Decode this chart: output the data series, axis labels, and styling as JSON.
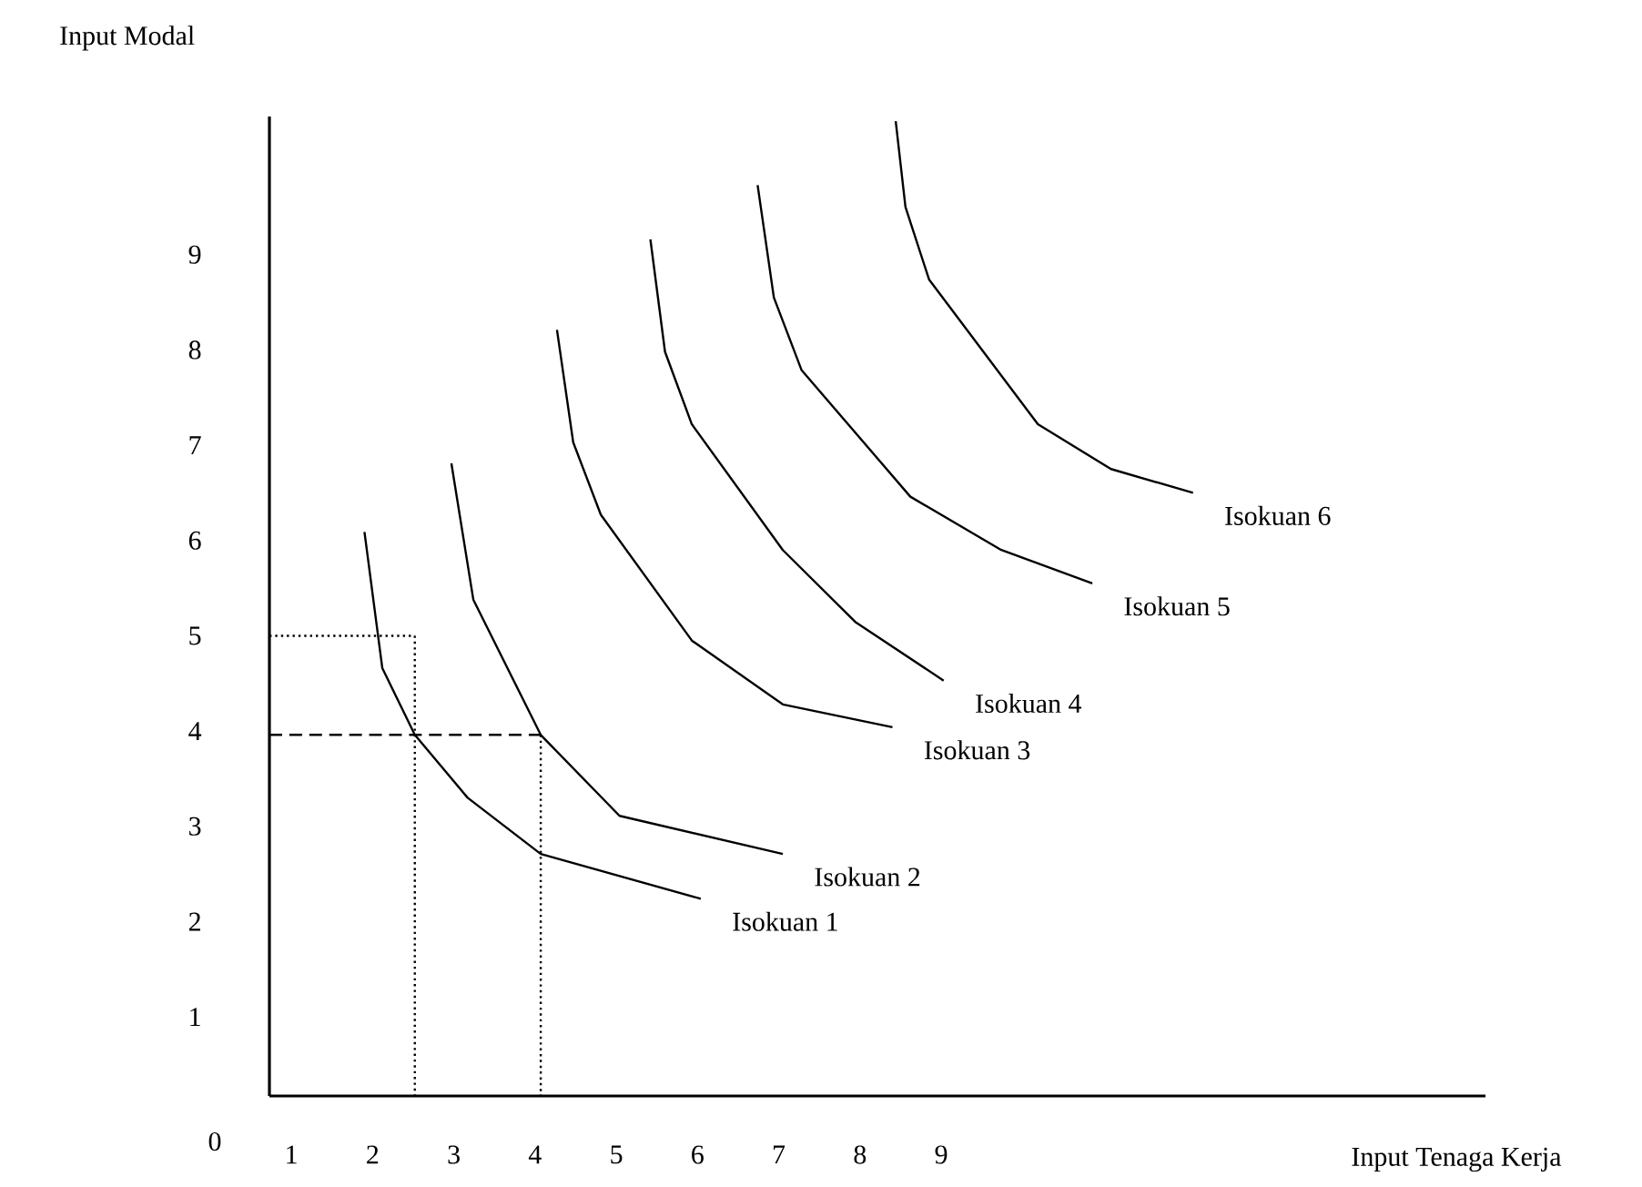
{
  "chart_data": {
    "type": "line",
    "xlabel": "Input Tenaga Kerja",
    "ylabel": "Input Modal",
    "xlim": [
      0.73,
      15.7
    ],
    "ylim": [
      0.17,
      10.45
    ],
    "xticks": [
      1,
      2,
      3,
      4,
      5,
      6,
      7,
      8,
      9
    ],
    "yticks": [
      1,
      2,
      3,
      4,
      5,
      6,
      7,
      8,
      9
    ],
    "annotations": [
      "0"
    ],
    "series": [
      {
        "name": "Isokuan 1",
        "color": "#000000",
        "x": [
          1.9,
          2.12,
          2.52,
          3.17,
          4.07,
          6.04
        ],
        "values": [
          6.09,
          4.66,
          3.96,
          3.3,
          2.71,
          2.24
        ]
      },
      {
        "name": "Isokuan 2",
        "color": "#000000",
        "x": [
          2.97,
          3.24,
          4.07,
          5.04,
          7.05
        ],
        "values": [
          6.81,
          5.38,
          3.96,
          3.11,
          2.71
        ]
      },
      {
        "name": "Isokuan 3",
        "color": "#000000",
        "x": [
          4.27,
          4.47,
          4.81,
          5.93,
          7.05,
          8.4
        ],
        "values": [
          8.21,
          7.03,
          6.27,
          4.95,
          4.28,
          4.04
        ]
      },
      {
        "name": "Isokuan 4",
        "color": "#000000",
        "x": [
          5.42,
          5.6,
          5.93,
          7.05,
          7.95,
          9.03
        ],
        "values": [
          9.16,
          7.98,
          7.22,
          5.9,
          5.14,
          4.53
        ]
      },
      {
        "name": "Isokuan 5",
        "color": "#000000",
        "x": [
          6.74,
          6.94,
          7.28,
          8.62,
          9.74,
          10.86
        ],
        "values": [
          9.73,
          8.55,
          7.79,
          6.46,
          5.9,
          5.55
        ]
      },
      {
        "name": "Isokuan 6",
        "color": "#000000",
        "x": [
          8.44,
          8.56,
          8.85,
          10.19,
          11.09,
          12.1
        ],
        "values": [
          10.4,
          9.5,
          8.74,
          7.22,
          6.75,
          6.5
        ]
      },
      {
        "color": "#000000",
        "line_style": "dotted",
        "x": [
          0.73,
          2.52
        ],
        "values": [
          5.0,
          5.0
        ]
      },
      {
        "color": "#000000",
        "line_style": "dotted",
        "x": [
          2.52,
          2.52
        ],
        "values": [
          5.0,
          0.17
        ]
      },
      {
        "color": "#000000",
        "line_style": "dashed",
        "x": [
          0.73,
          4.07
        ],
        "values": [
          3.96,
          3.96
        ]
      },
      {
        "color": "#000000",
        "line_style": "dotted",
        "x": [
          4.07,
          4.07
        ],
        "values": [
          3.96,
          0.17
        ]
      }
    ]
  }
}
